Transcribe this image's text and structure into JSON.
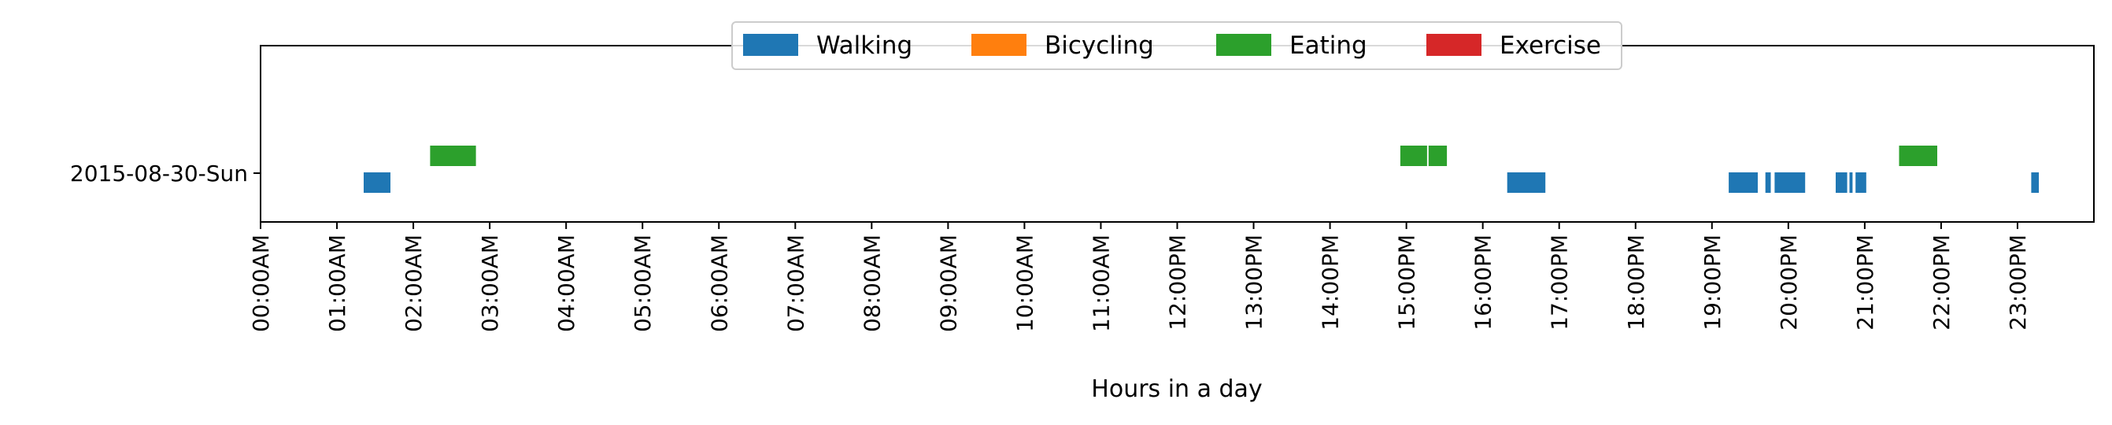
{
  "chart_data": {
    "type": "timeline",
    "xlabel": "Hours in a day",
    "xlim": [
      0,
      24
    ],
    "x_unit": "hours",
    "x_ticks": [
      "00:00AM",
      "01:00AM",
      "02:00AM",
      "03:00AM",
      "04:00AM",
      "05:00AM",
      "06:00AM",
      "07:00AM",
      "08:00AM",
      "09:00AM",
      "10:00AM",
      "11:00AM",
      "12:00PM",
      "13:00PM",
      "14:00PM",
      "15:00PM",
      "16:00PM",
      "17:00PM",
      "18:00PM",
      "19:00PM",
      "20:00PM",
      "21:00PM",
      "22:00PM",
      "23:00PM"
    ],
    "y_categories": [
      "2015-08-30-Sun"
    ],
    "grid": false,
    "legend": {
      "placement": "top-center",
      "entries": [
        {
          "name": "Walking",
          "color": "#1f77b4"
        },
        {
          "name": "Bicycling",
          "color": "#ff7f0e"
        },
        {
          "name": "Eating",
          "color": "#2ca02c"
        },
        {
          "name": "Exercise",
          "color": "#d62728"
        }
      ]
    },
    "series": [
      {
        "name": "Walking",
        "color": "#1f77b4",
        "row": "2015-08-30-Sun",
        "intervals": [
          [
            1.35,
            1.7
          ],
          [
            16.32,
            16.82
          ],
          [
            19.22,
            19.6
          ],
          [
            19.7,
            19.77
          ],
          [
            19.82,
            20.22
          ],
          [
            20.62,
            20.77
          ],
          [
            20.8,
            20.84
          ],
          [
            20.88,
            21.02
          ],
          [
            23.18,
            23.28
          ]
        ]
      },
      {
        "name": "Bicycling",
        "color": "#ff7f0e",
        "row": "2015-08-30-Sun",
        "intervals": []
      },
      {
        "name": "Eating",
        "color": "#2ca02c",
        "row": "2015-08-30-Sun",
        "intervals": [
          [
            2.22,
            2.82
          ],
          [
            14.92,
            15.27
          ],
          [
            15.29,
            15.53
          ],
          [
            21.45,
            21.95
          ]
        ]
      },
      {
        "name": "Exercise",
        "color": "#d62728",
        "row": "2015-08-30-Sun",
        "intervals": []
      }
    ]
  }
}
